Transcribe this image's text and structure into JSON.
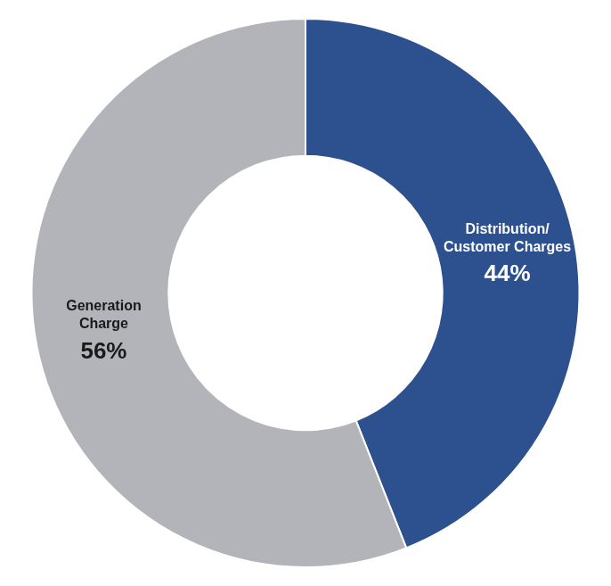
{
  "chart_data": {
    "type": "doughnut",
    "categories": [
      [
        "Distribution/",
        "Customer Charges"
      ],
      [
        "Generation",
        "Charge"
      ]
    ],
    "values": [
      44,
      56
    ],
    "value_labels": [
      "44%",
      "56%"
    ],
    "colors": [
      "#2d508e",
      "#b2b4b9"
    ],
    "data_labels": true
  }
}
